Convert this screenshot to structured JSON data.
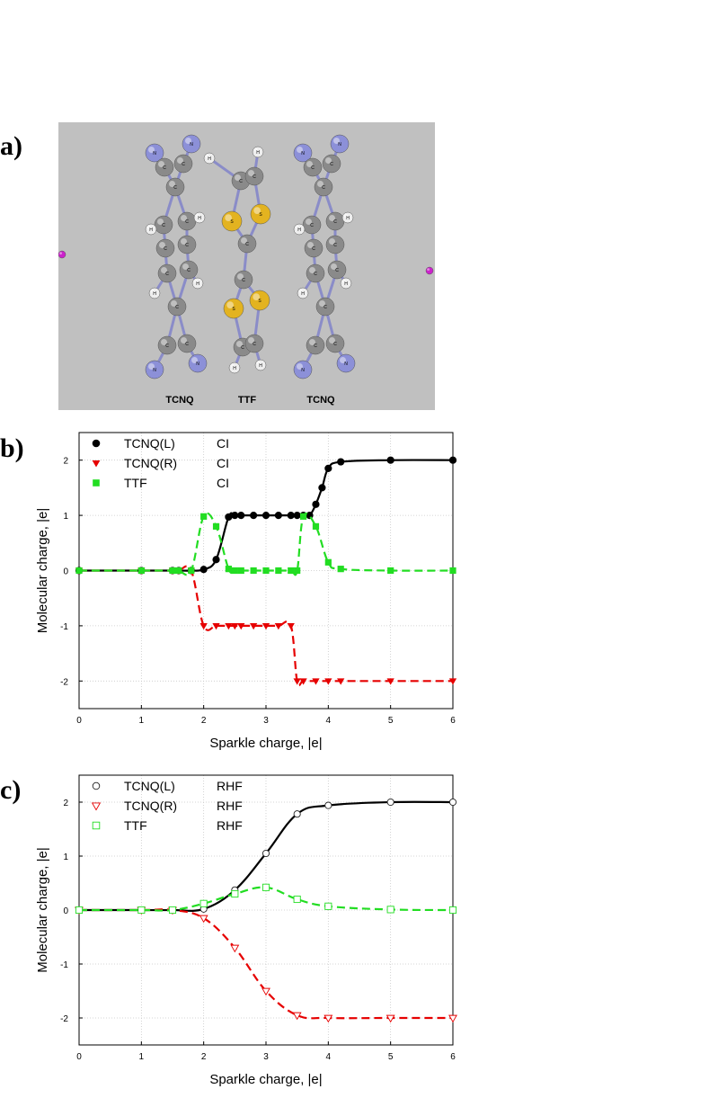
{
  "panels": {
    "a": {
      "label": "a)",
      "molecule_labels": [
        "TCNQ",
        "TTF",
        "TCNQ"
      ],
      "atom_letters": {
        "C": "C",
        "N": "N",
        "H": "H",
        "S": "S"
      }
    },
    "b": {
      "label": "b)"
    },
    "c": {
      "label": "c)"
    }
  },
  "colors": {
    "tcnqL": "#000000",
    "tcnqR": "#e60000",
    "ttf": "#22dd22",
    "background": "#c0c0c0",
    "nitrogen": "#8c90d8",
    "carbon": "#8a8a8a",
    "hydrogen": "#eeeeee",
    "sulfur": "#e3b320",
    "sparkle": "#cc22cc",
    "bond": "#8a8cc8"
  },
  "chart_data": [
    {
      "type": "line",
      "xlabel": "Sparkle charge, |e|",
      "ylabel": "Molecular charge, |e|",
      "xlim": [
        0,
        6
      ],
      "ylim": [
        -2.5,
        2.5
      ],
      "xticks": [
        "0",
        "1",
        "2",
        "3",
        "4",
        "5",
        "6"
      ],
      "yticks": [
        "2",
        "1",
        "0",
        "-1",
        "-2"
      ],
      "grid": true,
      "legend_position": "top-left",
      "series": [
        {
          "name": "TCNQ(L)",
          "method": "CI",
          "marker": "filled-circle",
          "dash": "solid",
          "color": "#000000",
          "x": [
            0,
            1,
            1.5,
            1.6,
            1.8,
            2,
            2.2,
            2.4,
            2.5,
            2.6,
            2.8,
            3,
            3.2,
            3.4,
            3.5,
            3.6,
            3.7,
            3.8,
            3.9,
            4,
            4.2,
            5,
            6
          ],
          "y": [
            0,
            0,
            0,
            0,
            0,
            0.02,
            0.2,
            0.97,
            1,
            1,
            1,
            1,
            1,
            1,
            1,
            1,
            1,
            1.2,
            1.5,
            1.85,
            1.97,
            2,
            2
          ]
        },
        {
          "name": "TCNQ(R)",
          "method": "CI",
          "marker": "filled-triangle-down",
          "dash": "dashed",
          "color": "#e60000",
          "x": [
            0,
            1,
            1.5,
            1.6,
            1.8,
            2,
            2.2,
            2.4,
            2.5,
            2.6,
            2.8,
            3,
            3.2,
            3.4,
            3.5,
            3.6,
            3.8,
            4,
            4.2,
            5,
            6
          ],
          "y": [
            0,
            0,
            0,
            0,
            0,
            -1,
            -1,
            -1,
            -1,
            -1,
            -1,
            -1,
            -1,
            -1,
            -2,
            -2,
            -2,
            -2,
            -2,
            -2,
            -2
          ]
        },
        {
          "name": "TTF",
          "method": "CI",
          "marker": "filled-square",
          "dash": "dashed",
          "color": "#22dd22",
          "x": [
            0,
            1,
            1.5,
            1.6,
            1.8,
            2,
            2.2,
            2.4,
            2.5,
            2.6,
            2.8,
            3,
            3.2,
            3.4,
            3.5,
            3.6,
            3.8,
            4,
            4.2,
            5,
            6
          ],
          "y": [
            0,
            0,
            0,
            0,
            0,
            0.98,
            0.8,
            0.03,
            0,
            0,
            0,
            0,
            0,
            0,
            0,
            0.98,
            0.8,
            0.15,
            0.03,
            0,
            0
          ]
        }
      ]
    },
    {
      "type": "line",
      "xlabel": "Sparkle charge, |e|",
      "ylabel": "Molecular charge, |e|",
      "xlim": [
        0,
        6
      ],
      "ylim": [
        -2.5,
        2.5
      ],
      "xticks": [
        "0",
        "1",
        "2",
        "3",
        "4",
        "5",
        "6"
      ],
      "yticks": [
        "2",
        "1",
        "0",
        "-1",
        "-2"
      ],
      "grid": true,
      "legend_position": "top-left",
      "series": [
        {
          "name": "TCNQ(L)",
          "method": "RHF",
          "marker": "open-circle",
          "dash": "solid",
          "color": "#000000",
          "x": [
            0,
            1,
            1.5,
            2,
            2.5,
            3,
            3.5,
            4,
            5,
            6
          ],
          "y": [
            0,
            0,
            0,
            0.02,
            0.37,
            1.05,
            1.78,
            1.94,
            2,
            2
          ]
        },
        {
          "name": "TCNQ(R)",
          "method": "RHF",
          "marker": "open-triangle-down",
          "dash": "dashed",
          "color": "#e60000",
          "x": [
            0,
            1,
            1.5,
            2,
            2.5,
            3,
            3.5,
            4,
            5,
            6
          ],
          "y": [
            0,
            0,
            0,
            -0.15,
            -0.7,
            -1.5,
            -1.95,
            -2,
            -2,
            -2
          ]
        },
        {
          "name": "TTF",
          "method": "RHF",
          "marker": "open-square",
          "dash": "dashed",
          "color": "#22dd22",
          "x": [
            0,
            1,
            1.5,
            2,
            2.5,
            3,
            3.5,
            4,
            5,
            6
          ],
          "y": [
            0,
            0,
            0,
            0.12,
            0.3,
            0.42,
            0.2,
            0.07,
            0.01,
            0
          ]
        }
      ]
    }
  ]
}
